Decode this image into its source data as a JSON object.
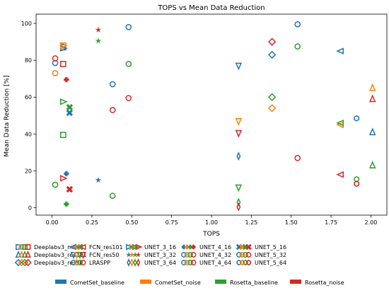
{
  "chart_data": {
    "type": "scatter",
    "title": "TOPS vs Mean Data Reduction",
    "xlabel": "TOPS",
    "ylabel": "Mean Data Reduction [%]",
    "xlim": [
      -0.1,
      2.1
    ],
    "ylim": [
      -4,
      105
    ],
    "xticks": [
      0.0,
      0.25,
      0.5,
      0.75,
      1.0,
      1.25,
      1.5,
      1.75,
      2.0
    ],
    "xtick_labels": [
      "0.00",
      "0.25",
      "0.50",
      "0.75",
      "1.00",
      "1.25",
      "1.50",
      "1.75",
      "2.00"
    ],
    "yticks": [
      0,
      20,
      40,
      60,
      80,
      100
    ],
    "ytick_labels": [
      "0",
      "20",
      "40",
      "60",
      "80",
      "100"
    ],
    "grid": false,
    "colors": {
      "CometSet_baseline": "#1f77b4",
      "CometSet_noise": "#ff7f0e",
      "Rosetta_baseline": "#2ca02c",
      "Rosetta_noise": "#d62728"
    },
    "models": [
      {
        "name": "Deeplabv3_mnv3",
        "marker": "square",
        "x": 0.07,
        "points": {
          "CometSet_baseline": 87,
          "CometSet_noise": 88,
          "Rosetta_baseline": 39.5,
          "Rosetta_noise": 78
        }
      },
      {
        "name": "Deeplabv3_res101",
        "marker": "triangle-up",
        "x": 2.01,
        "points": {
          "CometSet_baseline": 41,
          "CometSet_noise": 65,
          "Rosetta_baseline": 23,
          "Rosetta_noise": 59
        }
      },
      {
        "name": "Deeplabv3_res50",
        "marker": "diamond",
        "x": 1.38,
        "points": {
          "CometSet_baseline": 83,
          "CometSet_noise": 54,
          "Rosetta_baseline": 60,
          "Rosetta_noise": 90
        }
      },
      {
        "name": "FCN_res101",
        "marker": "triangle-left",
        "x": 1.81,
        "points": {
          "CometSet_baseline": 85,
          "CometSet_noise": 45,
          "Rosetta_baseline": 46,
          "Rosetta_noise": 18
        }
      },
      {
        "name": "FCN_res50",
        "marker": "triangle-down",
        "x": 1.17,
        "points": {
          "CometSet_baseline": 77,
          "CometSet_noise": 47,
          "Rosetta_baseline": 11,
          "Rosetta_noise": 40.5
        }
      },
      {
        "name": "LRASPP",
        "marker": "circle",
        "x": 0.38,
        "points": {
          "CometSet_baseline": 67,
          "CometSet_noise": null,
          "Rosetta_baseline": 6.5,
          "Rosetta_noise": 53
        }
      },
      {
        "name": "UNET_3_16",
        "marker": "triangle-right",
        "x": 0.07,
        "points": {
          "CometSet_baseline": 86.5,
          "CometSet_noise": 88,
          "Rosetta_baseline": 57.5,
          "Rosetta_noise": 16
        }
      },
      {
        "name": "UNET_3_32",
        "marker": "star",
        "x": 0.29,
        "points": {
          "CometSet_baseline": 15,
          "CometSet_noise": null,
          "Rosetta_baseline": 90.5,
          "Rosetta_noise": 96.5
        }
      },
      {
        "name": "UNET_3_64",
        "marker": "thin-diamond",
        "x": 1.17,
        "points": {
          "CometSet_baseline": 28,
          "CometSet_noise": null,
          "Rosetta_baseline": 3,
          "Rosetta_noise": 0.5
        }
      },
      {
        "name": "UNET_4_16",
        "marker": "plus",
        "x": 0.09,
        "points": {
          "CometSet_baseline": 18.5,
          "CometSet_noise": null,
          "Rosetta_baseline": 2,
          "Rosetta_noise": 69.5
        }
      },
      {
        "name": "UNET_4_32",
        "marker": "circle",
        "x": 0.48,
        "points": {
          "CometSet_baseline": 98,
          "CometSet_noise": null,
          "Rosetta_baseline": 78,
          "Rosetta_noise": 59.5
        }
      },
      {
        "name": "UNET_4_64",
        "marker": "circle",
        "x": 1.54,
        "points": {
          "CometSet_baseline": 99.5,
          "CometSet_noise": null,
          "Rosetta_baseline": 87.5,
          "Rosetta_noise": 27
        }
      },
      {
        "name": "UNET_5_16",
        "marker": "x",
        "x": 0.11,
        "points": {
          "CometSet_baseline": 51.5,
          "CometSet_noise": null,
          "Rosetta_baseline": 54.5,
          "Rosetta_noise": 10
        }
      },
      {
        "name": "UNET_5_32",
        "marker": "circle",
        "x": 0.02,
        "points": {
          "CometSet_baseline": 78.5,
          "CometSet_noise": 73,
          "Rosetta_baseline": 12.5,
          "Rosetta_noise": 81
        }
      },
      {
        "name": "UNET_5_64",
        "marker": "hexagon",
        "x": 1.91,
        "points": {
          "CometSet_baseline": 48.5,
          "CometSet_noise": null,
          "Rosetta_baseline": 15.5,
          "Rosetta_noise": 13
        }
      }
    ],
    "legend_models": [
      "Deeplabv3_mnv3",
      "Deeplabv3_res101",
      "Deeplabv3_res50",
      "FCN_res101",
      "FCN_res50",
      "LRASPP",
      "UNET_3_16",
      "UNET_3_32",
      "UNET_3_64",
      "UNET_4_16",
      "UNET_4_32",
      "UNET_4_64",
      "UNET_5_16",
      "UNET_5_32",
      "UNET_5_64"
    ],
    "legend_datasets": [
      "CometSet_baseline",
      "CometSet_noise",
      "Rosetta_baseline",
      "Rosetta_noise"
    ],
    "legend_placement": "below"
  }
}
